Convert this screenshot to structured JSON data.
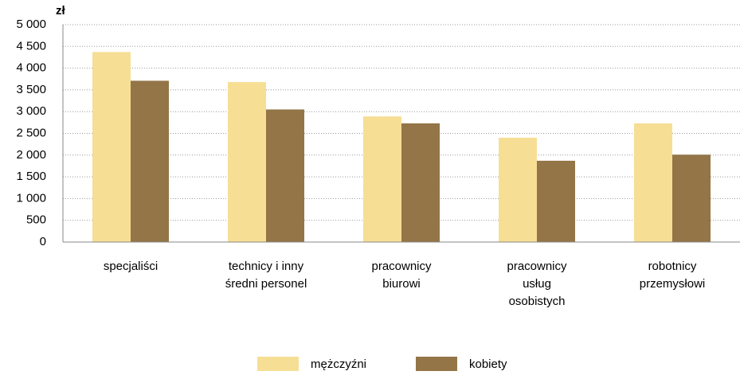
{
  "chart_data": {
    "type": "bar",
    "unit_label": "zł",
    "categories": [
      "specjaliści",
      "technicy i inny\nśredni personel",
      "pracownicy\nbiurowi",
      "pracownicy\nusług\nosobistych",
      "robotnicy\nprzemysłowi"
    ],
    "series": [
      {
        "name": "mężczyźni",
        "color": "#f6de95",
        "values": [
          4370,
          3680,
          2890,
          2400,
          2730
        ]
      },
      {
        "name": "kobiety",
        "color": "#937547",
        "values": [
          3710,
          3050,
          2730,
          1870,
          2010
        ]
      }
    ],
    "ylim": [
      0,
      5000
    ],
    "yticks": [
      0,
      500,
      {
        "value": 1000,
        "label": "1 000"
      },
      {
        "value": 1500,
        "label": "1 500"
      },
      {
        "value": 2000,
        "label": "2 000"
      },
      {
        "value": 2500,
        "label": "2 500"
      },
      {
        "value": 3000,
        "label": "3 000"
      },
      {
        "value": 3500,
        "label": "3 500"
      },
      {
        "value": 4000,
        "label": "4 000"
      },
      {
        "value": 4500,
        "label": "4 500"
      },
      {
        "value": 5000,
        "label": "5 000"
      }
    ],
    "grid": true,
    "legend": "bottom"
  }
}
